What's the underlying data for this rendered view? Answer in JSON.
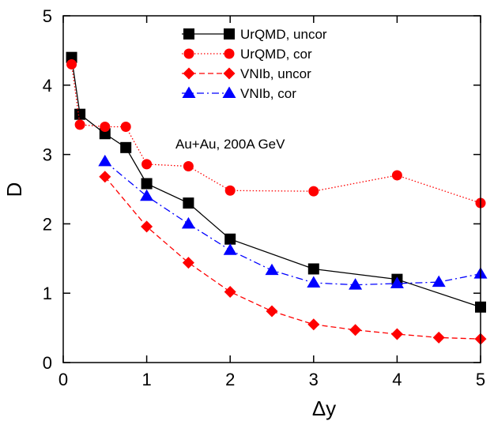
{
  "chart_data": {
    "type": "line",
    "title": "",
    "xlabel": "Δy",
    "ylabel": "D",
    "xlim": [
      0,
      5
    ],
    "ylim": [
      0,
      5
    ],
    "xticks": [
      "0",
      "1",
      "2",
      "3",
      "4",
      "5"
    ],
    "yticks": [
      "0",
      "1",
      "2",
      "3",
      "4",
      "5"
    ],
    "annotation": "Au+Au, 200A GeV",
    "legend_position": "top-center",
    "series": [
      {
        "name": "UrQMD, uncor",
        "color": "#000000",
        "marker": "square",
        "dash": "solid",
        "x": [
          0.1,
          0.2,
          0.5,
          0.75,
          1.0,
          1.5,
          2.0,
          3.0,
          4.0,
          5.0
        ],
        "y": [
          4.4,
          3.58,
          3.3,
          3.1,
          2.58,
          2.3,
          1.78,
          1.35,
          1.2,
          0.8
        ]
      },
      {
        "name": "UrQMD, cor",
        "color": "#ff0000",
        "marker": "circle",
        "dash": "dotted",
        "x": [
          0.1,
          0.2,
          0.5,
          0.75,
          1.0,
          1.5,
          2.0,
          3.0,
          4.0,
          5.0
        ],
        "y": [
          4.3,
          3.43,
          3.4,
          3.4,
          2.86,
          2.83,
          2.48,
          2.47,
          2.7,
          2.3
        ]
      },
      {
        "name": "VNIb, uncor",
        "color": "#ff0000",
        "marker": "diamond",
        "dash": "dashed",
        "x": [
          0.5,
          1.0,
          1.5,
          2.0,
          2.5,
          3.0,
          3.5,
          4.0,
          4.5,
          5.0
        ],
        "y": [
          2.68,
          1.96,
          1.44,
          1.02,
          0.74,
          0.55,
          0.47,
          0.41,
          0.36,
          0.34
        ]
      },
      {
        "name": "VNIb, cor",
        "color": "#0000ff",
        "marker": "triangle",
        "dash": "dashdot",
        "x": [
          0.5,
          1.0,
          1.5,
          2.0,
          2.5,
          3.0,
          3.5,
          4.0,
          4.5,
          5.0
        ],
        "y": [
          2.9,
          2.4,
          2.0,
          1.62,
          1.33,
          1.15,
          1.12,
          1.14,
          1.16,
          1.28
        ]
      }
    ]
  }
}
